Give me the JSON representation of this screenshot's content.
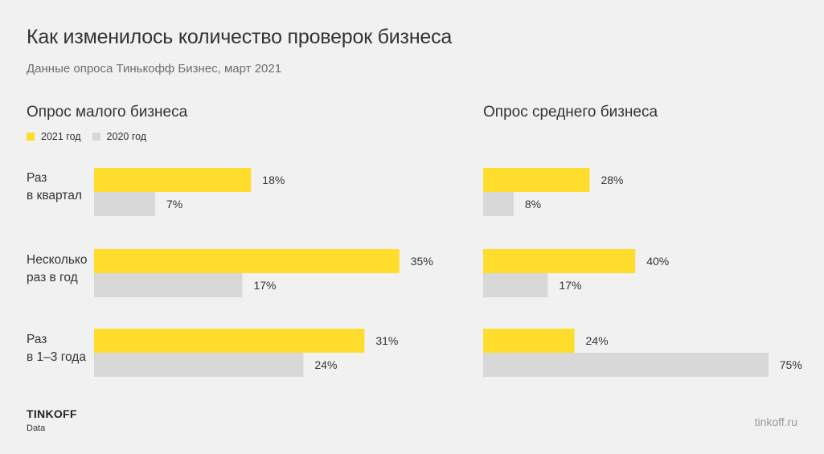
{
  "title": "Как изменилось количество проверок бизнеса",
  "subtitle": "Данные опроса Тинькофф Бизнес, март 2021",
  "legend": [
    {
      "label": "2021 год",
      "color": "#ffdd2d"
    },
    {
      "label": "2020 год",
      "color": "#d8d8d8"
    }
  ],
  "categories": [
    {
      "line1": "Раз",
      "line2": "в квартал"
    },
    {
      "line1": "Несколько",
      "line2": "раз в год"
    },
    {
      "line1": "Раз",
      "line2": "в 1–3 года"
    }
  ],
  "footer": {
    "brand": "TINKOFF",
    "brand_sub": "Data",
    "site": "tinkoff.ru"
  },
  "chart_data": [
    {
      "type": "bar",
      "title": "Опрос малого бизнеса",
      "orientation": "horizontal",
      "categories": [
        "Раз в квартал",
        "Несколько раз в год",
        "Раз в 1–3 года"
      ],
      "series": [
        {
          "name": "2021 год",
          "color": "#ffdd2d",
          "values": [
            18,
            35,
            31
          ]
        },
        {
          "name": "2020 год",
          "color": "#d8d8d8",
          "values": [
            7,
            17,
            24
          ]
        }
      ],
      "value_suffix": "%",
      "grid": false
    },
    {
      "type": "bar",
      "title": "Опрос среднего бизнеса",
      "orientation": "horizontal",
      "categories": [
        "Раз в квартал",
        "Несколько раз в год",
        "Раз в 1–3 года"
      ],
      "series": [
        {
          "name": "2021 год",
          "color": "#ffdd2d",
          "values": [
            28,
            40,
            24
          ]
        },
        {
          "name": "2020 год",
          "color": "#d8d8d8",
          "values": [
            8,
            17,
            75
          ]
        }
      ],
      "value_suffix": "%",
      "grid": false
    }
  ]
}
